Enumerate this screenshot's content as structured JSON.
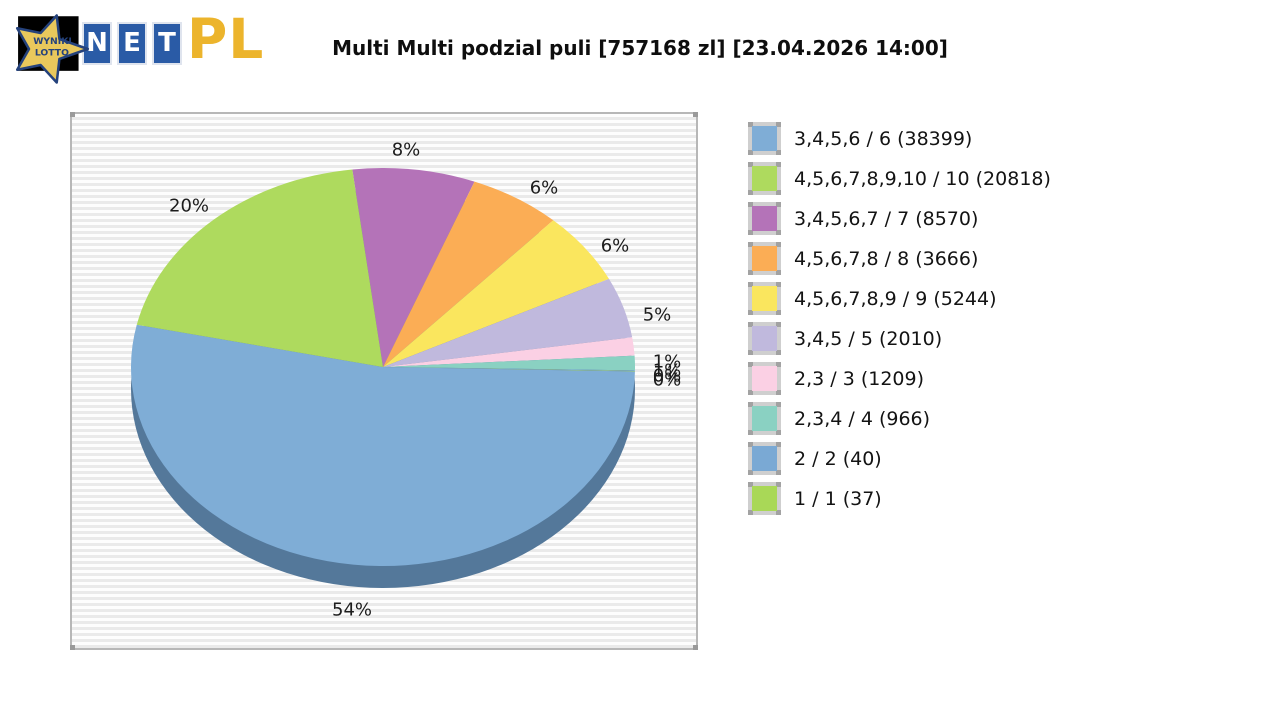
{
  "title": "Multi Multi podzial puli [757168 zl] [23.04.2026 14:00]",
  "logo": {
    "star_text_line1": "WYNIKI",
    "star_text_line2": "LOTTO",
    "net_letters": [
      "N",
      "E",
      "T"
    ],
    "suffix": "PL",
    "colors": {
      "star_fill": "#e9c85c",
      "star_stroke": "#25427c",
      "box_blue": "#2a5ba6",
      "gold": "#ecb42c",
      "black_bg": "#000000"
    }
  },
  "chart_data": {
    "type": "pie",
    "style": "3d",
    "title": "Multi Multi podzial puli [757168 zl] [23.04.2026 14:00]",
    "legend_position": "right",
    "rim_color": "#54789a",
    "slices": [
      {
        "label": "3,4,5,6 / 6",
        "count": 38399,
        "percent_label": "54%",
        "share": 54,
        "color": "#7fadd6"
      },
      {
        "label": "4,5,6,7,8,9,10 / 10",
        "count": 20818,
        "percent_label": "20%",
        "share": 20,
        "color": "#aeda5e"
      },
      {
        "label": "3,4,5,6,7 / 7",
        "count": 8570,
        "percent_label": "8%",
        "share": 8,
        "color": "#b473b8"
      },
      {
        "label": "4,5,6,7,8 / 8",
        "count": 3666,
        "percent_label": "6%",
        "share": 6,
        "color": "#fbad55"
      },
      {
        "label": "4,5,6,7,8,9 / 9",
        "count": 5244,
        "percent_label": "6%",
        "share": 6,
        "color": "#fae65e"
      },
      {
        "label": "3,4,5 / 5",
        "count": 2010,
        "percent_label": "5%",
        "share": 5,
        "color": "#c0b9dd"
      },
      {
        "label": "2,3 / 3",
        "count": 1209,
        "percent_label": "1%",
        "share": 1.5,
        "color": "#fbd0e4"
      },
      {
        "label": "2,3,4 / 4",
        "count": 966,
        "percent_label": "1%",
        "share": 1.2,
        "color": "#8ad1c2"
      },
      {
        "label": "2 / 2",
        "count": 40,
        "percent_label": "0%",
        "share": 0.05,
        "color": "#7aa9d4"
      },
      {
        "label": "1 / 1",
        "count": 37,
        "percent_label": "0%",
        "share": 0.05,
        "color": "#a9d857"
      }
    ]
  }
}
